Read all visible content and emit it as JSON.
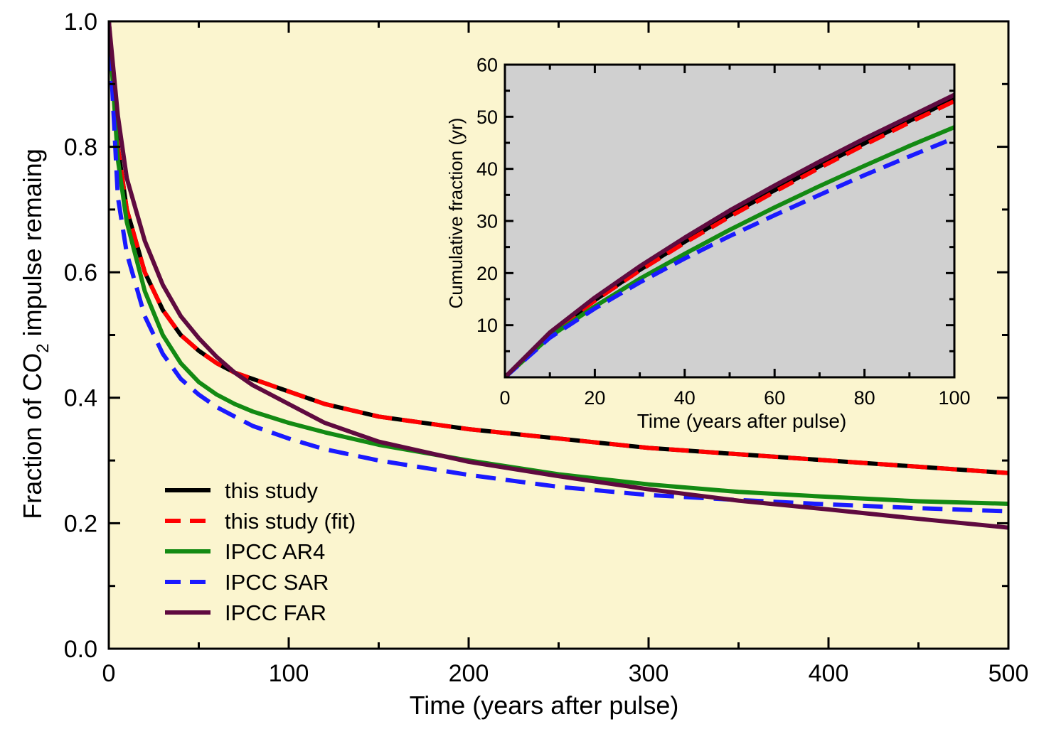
{
  "chart_data": [
    {
      "type": "line",
      "title": "",
      "xlabel": "Time (years after pulse)",
      "ylabel": {
        "prefix": "Fraction of CO",
        "subscript": "2",
        "suffix": " impulse remaing"
      },
      "xlim": [
        0,
        500
      ],
      "ylim": [
        0,
        1
      ],
      "xticks": [
        "0",
        "100",
        "200",
        "300",
        "400",
        "500"
      ],
      "yticks": [
        "0.0",
        "0.2",
        "0.4",
        "0.6",
        "0.8",
        "1.0"
      ],
      "background": "#fbf5cf",
      "legend_position": "bottom-left",
      "series": [
        {
          "name": "this study",
          "color": "#000000",
          "style": "solid",
          "x": [
            0,
            5,
            10,
            20,
            30,
            40,
            50,
            60,
            70,
            80,
            100,
            120,
            150,
            200,
            250,
            300,
            350,
            400,
            450,
            500
          ],
          "y": [
            1.0,
            0.8,
            0.7,
            0.6,
            0.54,
            0.5,
            0.475,
            0.455,
            0.44,
            0.43,
            0.41,
            0.39,
            0.37,
            0.35,
            0.335,
            0.32,
            0.31,
            0.3,
            0.29,
            0.28
          ]
        },
        {
          "name": "this study (fit)",
          "color": "#ff0000",
          "style": "dashed",
          "x": [
            0,
            5,
            10,
            20,
            30,
            40,
            50,
            60,
            70,
            80,
            100,
            120,
            150,
            200,
            250,
            300,
            350,
            400,
            450,
            500
          ],
          "y": [
            1.0,
            0.8,
            0.7,
            0.6,
            0.54,
            0.5,
            0.475,
            0.455,
            0.44,
            0.43,
            0.41,
            0.39,
            0.37,
            0.35,
            0.335,
            0.32,
            0.31,
            0.3,
            0.29,
            0.28
          ]
        },
        {
          "name": "IPCC AR4",
          "color": "#138a13",
          "style": "solid",
          "x": [
            0,
            5,
            10,
            20,
            30,
            40,
            50,
            60,
            70,
            80,
            100,
            120,
            150,
            200,
            250,
            300,
            350,
            400,
            450,
            500
          ],
          "y": [
            1.0,
            0.78,
            0.68,
            0.57,
            0.5,
            0.455,
            0.425,
            0.405,
            0.39,
            0.378,
            0.36,
            0.345,
            0.325,
            0.3,
            0.278,
            0.262,
            0.25,
            0.242,
            0.235,
            0.231
          ]
        },
        {
          "name": "IPCC SAR",
          "color": "#1a1aff",
          "style": "dashed",
          "x": [
            0,
            5,
            10,
            20,
            30,
            40,
            50,
            60,
            70,
            80,
            100,
            120,
            150,
            200,
            250,
            300,
            350,
            400,
            450,
            500
          ],
          "y": [
            1.0,
            0.72,
            0.63,
            0.53,
            0.47,
            0.43,
            0.405,
            0.385,
            0.37,
            0.355,
            0.335,
            0.318,
            0.3,
            0.277,
            0.258,
            0.245,
            0.237,
            0.23,
            0.224,
            0.219
          ]
        },
        {
          "name": "IPCC FAR",
          "color": "#5f0a3f",
          "style": "solid",
          "x": [
            0,
            5,
            10,
            20,
            30,
            40,
            50,
            60,
            70,
            80,
            100,
            120,
            150,
            200,
            250,
            300,
            350,
            400,
            450,
            500
          ],
          "y": [
            1.0,
            0.85,
            0.75,
            0.65,
            0.58,
            0.53,
            0.495,
            0.465,
            0.44,
            0.42,
            0.39,
            0.36,
            0.33,
            0.298,
            0.275,
            0.254,
            0.236,
            0.222,
            0.207,
            0.193
          ]
        }
      ]
    },
    {
      "type": "line",
      "title": "",
      "xlabel": "Time (years after pulse)",
      "ylabel": "Cumulative fraction (yr)",
      "xlim": [
        0,
        100
      ],
      "ylim": [
        0,
        60
      ],
      "xticks": [
        "0",
        "20",
        "40",
        "60",
        "80",
        "100"
      ],
      "yticks": [
        "10",
        "20",
        "30",
        "40",
        "50",
        "60"
      ],
      "background": "#d0d0d0",
      "series": [
        {
          "name": "this study",
          "color": "#000000",
          "style": "solid",
          "x": [
            0,
            10,
            20,
            30,
            40,
            50,
            60,
            70,
            80,
            90,
            100
          ],
          "y": [
            0,
            8.3,
            14.8,
            20.6,
            26.0,
            31.1,
            35.9,
            40.5,
            44.9,
            49.2,
            53.5
          ]
        },
        {
          "name": "this study (fit)",
          "color": "#ff0000",
          "style": "dashed",
          "x": [
            0,
            10,
            20,
            30,
            40,
            50,
            60,
            70,
            80,
            90,
            100
          ],
          "y": [
            0,
            8.3,
            14.7,
            20.5,
            25.8,
            30.8,
            35.6,
            40.2,
            44.6,
            48.9,
            53.0
          ]
        },
        {
          "name": "IPCC AR4",
          "color": "#138a13",
          "style": "solid",
          "x": [
            0,
            10,
            20,
            30,
            40,
            50,
            60,
            70,
            80,
            90,
            100
          ],
          "y": [
            0,
            7.8,
            13.6,
            18.9,
            23.7,
            28.3,
            32.6,
            36.7,
            40.6,
            44.4,
            48.0
          ]
        },
        {
          "name": "IPCC SAR",
          "color": "#1a1aff",
          "style": "dashed",
          "x": [
            0,
            10,
            20,
            30,
            40,
            50,
            60,
            70,
            80,
            90,
            100
          ],
          "y": [
            0,
            7.6,
            13.2,
            18.2,
            22.8,
            27.1,
            31.1,
            35.0,
            38.8,
            42.4,
            45.9
          ]
        },
        {
          "name": "IPCC FAR",
          "color": "#5f0a3f",
          "style": "solid",
          "x": [
            0,
            10,
            20,
            30,
            40,
            50,
            60,
            70,
            80,
            90,
            100
          ],
          "y": [
            0,
            8.6,
            15.3,
            21.3,
            26.8,
            32.0,
            36.8,
            41.4,
            45.8,
            50.0,
            54.2
          ]
        }
      ]
    }
  ]
}
